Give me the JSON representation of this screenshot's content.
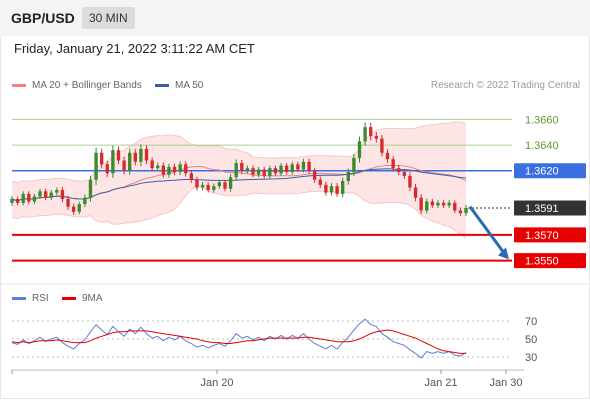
{
  "header": {
    "pair": "GBP/USD",
    "timeframe": "30 MIN"
  },
  "timestamp": "Friday, January 21, 2022 3:11:22 AM CET",
  "legend": {
    "ma20": "MA 20 + Bollinger Bands",
    "ma50": "MA 50",
    "copyright": "Research © 2022 Trading Central",
    "rsi": "RSI",
    "nine_ma": "9MA"
  },
  "colors": {
    "bull": "#3a8a2e",
    "bear": "#d52b2b",
    "ma20": "#f08080",
    "ma50": "#3a5fa0",
    "band": "#fde0e0",
    "resistance": "#a9d18e",
    "pivot": "#3b6fe0",
    "support": "#e60000",
    "last": "#333333",
    "arrow": "#2b6cb0",
    "rsi": "#5b7fd6"
  },
  "chart_data": {
    "type": "candlestick",
    "x_labels": [
      "Jan 20",
      "Jan 21",
      "Jan 30"
    ],
    "ylim": [
      1.3538,
      1.3672
    ],
    "levels": [
      {
        "label": "1.3660",
        "value": 1.366,
        "kind": "resistance"
      },
      {
        "label": "1.3640",
        "value": 1.364,
        "kind": "resistance"
      },
      {
        "label": "1.3620",
        "value": 1.362,
        "kind": "pivot"
      },
      {
        "label": "1.3591",
        "value": 1.3591,
        "kind": "last"
      },
      {
        "label": "1.3570",
        "value": 1.357,
        "kind": "support"
      },
      {
        "label": "1.3550",
        "value": 1.355,
        "kind": "support"
      }
    ],
    "close": [
      1.3598,
      1.3595,
      1.3602,
      1.3596,
      1.36,
      1.3604,
      1.3599,
      1.3603,
      1.3605,
      1.3598,
      1.3592,
      1.3588,
      1.3594,
      1.3599,
      1.3613,
      1.3634,
      1.3625,
      1.3618,
      1.3636,
      1.3628,
      1.362,
      1.3634,
      1.3627,
      1.3637,
      1.3628,
      1.3622,
      1.3624,
      1.3617,
      1.3623,
      1.3619,
      1.3625,
      1.3618,
      1.3613,
      1.3607,
      1.3609,
      1.3605,
      1.3608,
      1.3611,
      1.3606,
      1.3615,
      1.3626,
      1.362,
      1.3622,
      1.3617,
      1.3621,
      1.3616,
      1.3622,
      1.3618,
      1.3624,
      1.3619,
      1.3625,
      1.3621,
      1.3627,
      1.362,
      1.3613,
      1.3609,
      1.3603,
      1.3608,
      1.3602,
      1.3612,
      1.3619,
      1.363,
      1.3643,
      1.3654,
      1.3647,
      1.3645,
      1.3634,
      1.3629,
      1.3622,
      1.3619,
      1.3616,
      1.3607,
      1.3599,
      1.3589,
      1.3596,
      1.3593,
      1.3595,
      1.3593,
      1.3595,
      1.3589,
      1.3587,
      1.3591
    ],
    "volatility": [
      6,
      5,
      5,
      5,
      5,
      5,
      5,
      5,
      5,
      6,
      6,
      6,
      5,
      6,
      8,
      10,
      8,
      7,
      9,
      7,
      7,
      8,
      7,
      9,
      7,
      6,
      6,
      6,
      6,
      6,
      6,
      6,
      6,
      6,
      6,
      5,
      5,
      5,
      5,
      6,
      7,
      6,
      5,
      5,
      5,
      5,
      5,
      5,
      5,
      5,
      5,
      5,
      6,
      6,
      6,
      6,
      6,
      6,
      6,
      7,
      7,
      8,
      9,
      9,
      8,
      8,
      7,
      7,
      6,
      6,
      6,
      7,
      7,
      7,
      6,
      5,
      5,
      5,
      5,
      5,
      6,
      6
    ],
    "rsi": {
      "yticks": [
        30,
        50,
        70
      ],
      "ylim": [
        20,
        80
      ],
      "rsi_values": [
        46,
        44,
        49,
        45,
        48,
        52,
        47,
        50,
        52,
        46,
        42,
        39,
        45,
        49,
        58,
        66,
        60,
        55,
        64,
        58,
        53,
        61,
        56,
        63,
        56,
        51,
        53,
        48,
        52,
        49,
        53,
        48,
        45,
        41,
        43,
        40,
        43,
        45,
        42,
        48,
        56,
        51,
        53,
        49,
        52,
        48,
        53,
        50,
        54,
        50,
        54,
        51,
        56,
        50,
        45,
        42,
        39,
        43,
        39,
        46,
        52,
        60,
        67,
        72,
        66,
        64,
        56,
        52,
        47,
        45,
        43,
        38,
        34,
        29,
        36,
        34,
        36,
        34,
        36,
        32,
        31,
        35
      ],
      "ma9_values": [
        47,
        46,
        47,
        46,
        47,
        48,
        48,
        48,
        49,
        48,
        47,
        46,
        46,
        46,
        48,
        51,
        53,
        55,
        57,
        58,
        58,
        59,
        59,
        59,
        59,
        58,
        57,
        56,
        55,
        54,
        53,
        52,
        51,
        50,
        48,
        47,
        46,
        46,
        45,
        45,
        46,
        47,
        48,
        48,
        49,
        50,
        51,
        51,
        51,
        51,
        51,
        51,
        52,
        52,
        51,
        50,
        49,
        48,
        47,
        47,
        47,
        48,
        50,
        53,
        56,
        58,
        59,
        60,
        59,
        57,
        55,
        53,
        51,
        48,
        45,
        42,
        39,
        37,
        36,
        35,
        34,
        34
      ]
    }
  }
}
